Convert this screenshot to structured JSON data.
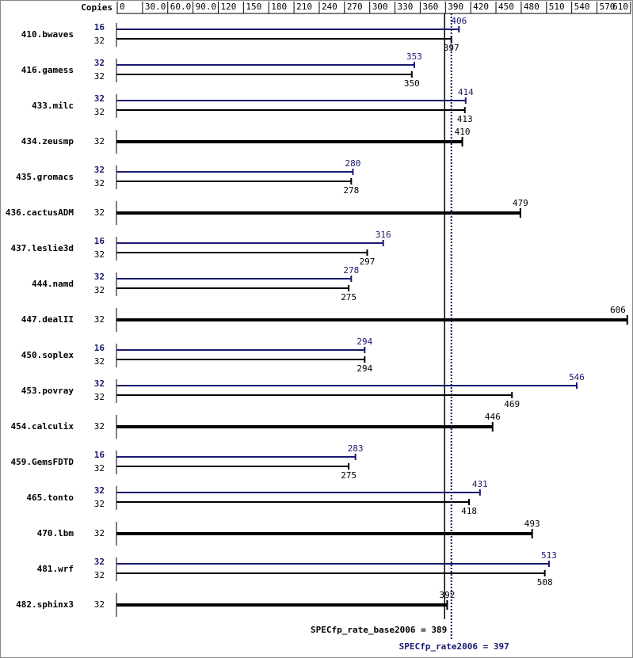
{
  "chart_data": {
    "type": "bar",
    "orientation": "horizontal",
    "copies_label": "Copies",
    "categories": [
      "410.bwaves",
      "416.gamess",
      "433.milc",
      "434.zeusmp",
      "435.gromacs",
      "436.cactusADM",
      "437.leslie3d",
      "444.namd",
      "447.dealII",
      "450.soplex",
      "453.povray",
      "454.calculix",
      "459.GemsFDTD",
      "465.tonto",
      "470.lbm",
      "481.wrf",
      "482.sphinx3"
    ],
    "series": [
      {
        "color": "#191970",
        "copies": [
          16,
          32,
          32,
          null,
          32,
          null,
          16,
          32,
          null,
          16,
          32,
          null,
          16,
          32,
          null,
          32,
          null
        ],
        "values": [
          406,
          353,
          414,
          null,
          280,
          null,
          316,
          278,
          null,
          294,
          546,
          null,
          283,
          431,
          null,
          513,
          null
        ]
      },
      {
        "color": "#000000",
        "copies": [
          32,
          32,
          32,
          32,
          32,
          32,
          32,
          32,
          32,
          32,
          32,
          32,
          32,
          32,
          32,
          32,
          32
        ],
        "values": [
          397,
          350,
          413,
          410,
          278,
          479,
          297,
          275,
          606,
          294,
          469,
          446,
          275,
          418,
          493,
          508,
          392
        ]
      }
    ],
    "xlim": [
      0,
      610
    ],
    "xticks": [
      0,
      {
        "value": 30,
        "label": "30.0"
      },
      {
        "value": 60,
        "label": "60.0"
      },
      {
        "value": 90,
        "label": "90.0"
      },
      120,
      150,
      180,
      210,
      240,
      270,
      300,
      330,
      360,
      390,
      420,
      450,
      480,
      510,
      540,
      570,
      610
    ],
    "base_score": {
      "value": 389,
      "label": "SPECfp_rate_base2006 = 389",
      "color": "#000000"
    },
    "peak_score": {
      "value": 397,
      "label": "SPECfp_rate2006 = 397",
      "color": "#191970"
    }
  }
}
